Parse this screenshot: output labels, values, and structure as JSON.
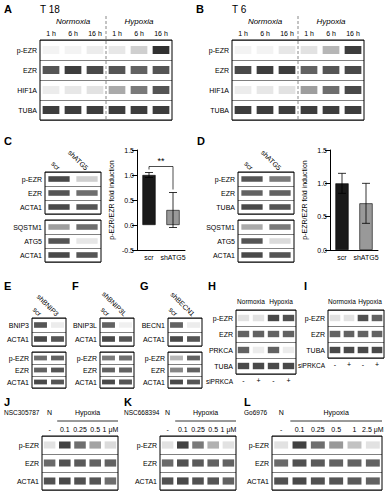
{
  "chart_data": [
    {
      "type": "heatmap",
      "label": "A",
      "title": "T 18",
      "lane_groups": [
        "Normoxia",
        "Normoxia",
        "Normoxia",
        "Hypoxia",
        "Hypoxia",
        "Hypoxia"
      ],
      "categories": [
        "1 h",
        "6 h",
        "16 h",
        "1 h",
        "6 h",
        "16 h"
      ],
      "gels": [
        {
          "rows": [
            "p-EZR",
            "EZR",
            "HIF1A",
            "TUBA"
          ],
          "values": [
            [
              0.05,
              0.05,
              0.08,
              0.1,
              0.2,
              0.85
            ],
            [
              0.7,
              0.8,
              0.75,
              0.7,
              0.65,
              0.7
            ],
            [
              0.08,
              0.1,
              0.12,
              0.35,
              0.55,
              0.7
            ],
            [
              0.8,
              0.8,
              0.8,
              0.8,
              0.8,
              0.8
            ]
          ]
        }
      ]
    },
    {
      "type": "heatmap",
      "label": "B",
      "title": "T 6",
      "lane_groups": [
        "Normoxia",
        "Normoxia",
        "Normoxia",
        "Hypoxia",
        "Hypoxia",
        "Hypoxia"
      ],
      "categories": [
        "1 h",
        "6 h",
        "16 h",
        "1 h",
        "6 h",
        "16 h"
      ],
      "gels": [
        {
          "rows": [
            "p-EZR",
            "EZR",
            "HIF1A",
            "TUBA"
          ],
          "values": [
            [
              0.05,
              0.05,
              0.1,
              0.12,
              0.3,
              0.8
            ],
            [
              0.75,
              0.8,
              0.8,
              0.65,
              0.7,
              0.75
            ],
            [
              0.08,
              0.1,
              0.12,
              0.4,
              0.6,
              0.75
            ],
            [
              0.8,
              0.8,
              0.8,
              0.8,
              0.8,
              0.8
            ]
          ]
        }
      ]
    },
    {
      "type": "heatmap",
      "label": "C",
      "categories": [
        "scr",
        "shATG5"
      ],
      "gels": [
        {
          "rows": [
            "p-EZR",
            "EZR",
            "ACTA1"
          ],
          "values": [
            [
              0.75,
              0.2
            ],
            [
              0.7,
              0.6
            ],
            [
              0.75,
              0.7
            ]
          ]
        },
        {
          "rows": [
            "SQSTM1",
            "ATG5",
            "ACTA1"
          ],
          "values": [
            [
              0.4,
              0.6
            ],
            [
              0.7,
              0.1
            ],
            [
              0.75,
              0.7
            ]
          ]
        }
      ]
    },
    {
      "type": "bar",
      "categories": [
        "scr",
        "shATG5"
      ],
      "values": [
        1.0,
        0.3
      ],
      "colors": [
        "#1a1a1a",
        "#999999"
      ],
      "error_bars": [
        0.05,
        0.35
      ],
      "ylabel": "p-EZR/EZR fold induction",
      "ylim": [
        -0.5,
        1.5
      ],
      "yticks": [
        -0.5,
        {
          "value": 0,
          "label": "0.0"
        },
        0.5,
        {
          "value": 1,
          "label": "1.0"
        },
        1.5
      ],
      "grid": false,
      "annotations": [
        "**"
      ]
    },
    {
      "type": "heatmap",
      "label": "D",
      "categories": [
        "scr",
        "shATG5"
      ],
      "gels": [
        {
          "rows": [
            "p-EZR",
            "EZR",
            "TUBA"
          ],
          "values": [
            [
              0.7,
              0.55
            ],
            [
              0.65,
              0.65
            ],
            [
              0.75,
              0.7
            ]
          ]
        },
        {
          "rows": [
            "SQSTM1",
            "ATG5",
            "ACTA1"
          ],
          "values": [
            [
              0.35,
              0.55
            ],
            [
              0.7,
              0.15
            ],
            [
              0.75,
              0.7
            ]
          ]
        }
      ]
    },
    {
      "type": "bar",
      "categories": [
        "scr",
        "shATG5"
      ],
      "values": [
        1.0,
        0.7
      ],
      "colors": [
        "#1a1a1a",
        "#999999"
      ],
      "error_bars": [
        0.15,
        0.3
      ],
      "ylabel": "p-EZR/EZR fold induction",
      "ylim": [
        0,
        1.5
      ],
      "yticks": [
        {
          "value": 0,
          "label": "0.0"
        },
        0.5,
        {
          "value": 1,
          "label": "1.0"
        },
        1.5
      ],
      "grid": false
    },
    {
      "type": "heatmap",
      "label": "E",
      "categories": [
        "scr",
        "shBNIP3"
      ],
      "gels": [
        {
          "rows": [
            "BNIP3",
            "ACTA1"
          ],
          "values": [
            [
              0.7,
              0.08
            ],
            [
              0.75,
              0.7
            ]
          ]
        },
        {
          "rows": [
            "p-EZR",
            "EZR",
            "ACTA1"
          ],
          "values": [
            [
              0.6,
              0.65
            ],
            [
              0.65,
              0.7
            ],
            [
              0.75,
              0.7
            ]
          ]
        }
      ]
    },
    {
      "type": "heatmap",
      "label": "F",
      "categories": [
        "scr",
        "shBNIP3L"
      ],
      "gels": [
        {
          "rows": [
            "BNIP3L",
            "ACTA1"
          ],
          "values": [
            [
              0.65,
              0.06
            ],
            [
              0.75,
              0.7
            ]
          ]
        },
        {
          "rows": [
            "p-EZR",
            "EZR",
            "ACTA1"
          ],
          "values": [
            [
              0.55,
              0.6
            ],
            [
              0.65,
              0.65
            ],
            [
              0.75,
              0.7
            ]
          ]
        }
      ]
    },
    {
      "type": "heatmap",
      "label": "G",
      "categories": [
        "scr",
        "shBECN1"
      ],
      "gels": [
        {
          "rows": [
            "BECN1",
            "ACTA1"
          ],
          "values": [
            [
              0.65,
              0.08
            ],
            [
              0.75,
              0.7
            ]
          ]
        },
        {
          "rows": [
            "p-EZR",
            "EZR",
            "ACTA1"
          ],
          "values": [
            [
              0.3,
              0.65
            ],
            [
              0.5,
              0.65
            ],
            [
              0.75,
              0.7
            ]
          ]
        }
      ]
    },
    {
      "type": "heatmap",
      "label": "H",
      "lane_groups": [
        "Normoxia",
        "Normoxia",
        "Hypoxia",
        "Hypoxia"
      ],
      "categories": [
        "-",
        "+",
        "-",
        "+"
      ],
      "xlabel": "siPRKCA",
      "gels": [
        {
          "rows": [
            "p-EZR",
            "EZR",
            "PRKCA",
            "TUBA"
          ],
          "values": [
            [
              0.12,
              0.12,
              0.75,
              0.72
            ],
            [
              0.65,
              0.65,
              0.65,
              0.65
            ],
            [
              0.65,
              0.08,
              0.65,
              0.08
            ],
            [
              0.75,
              0.75,
              0.75,
              0.75
            ]
          ]
        }
      ]
    },
    {
      "type": "heatmap",
      "label": "I",
      "lane_groups": [
        "Normoxia",
        "Normoxia",
        "Hypoxia",
        "Hypoxia"
      ],
      "categories": [
        "-",
        "+",
        "-",
        "+"
      ],
      "xlabel": "siPRKCA",
      "gels": [
        {
          "rows": [
            "p-EZR",
            "EZR",
            "TUBA"
          ],
          "values": [
            [
              0.12,
              0.12,
              0.72,
              0.65
            ],
            [
              0.65,
              0.65,
              0.65,
              0.65
            ],
            [
              0.75,
              0.75,
              0.75,
              0.75
            ]
          ]
        }
      ]
    },
    {
      "type": "heatmap",
      "label": "J",
      "subtitle": "NSC305787",
      "lane_groups": [
        "N",
        "Hypoxia",
        "Hypoxia",
        "Hypoxia",
        "Hypoxia"
      ],
      "categories": [
        "-",
        "0.1",
        "0.25",
        "0.5",
        "1 μM"
      ],
      "gels": [
        {
          "rows": [
            "p-EZR",
            "EZR",
            "ACTA1"
          ],
          "values": [
            [
              0.12,
              0.78,
              0.6,
              0.38,
              0.15
            ],
            [
              0.62,
              0.72,
              0.68,
              0.65,
              0.65
            ],
            [
              0.72,
              0.75,
              0.72,
              0.7,
              0.6
            ]
          ]
        }
      ]
    },
    {
      "type": "heatmap",
      "label": "K",
      "subtitle": "NSC668394",
      "lane_groups": [
        "N",
        "Hypoxia",
        "Hypoxia",
        "Hypoxia",
        "Hypoxia"
      ],
      "categories": [
        "-",
        "0.1",
        "0.25",
        "0.5",
        "1 μM"
      ],
      "gels": [
        {
          "rows": [
            "p-EZR",
            "EZR",
            "ACTA1"
          ],
          "values": [
            [
              0.12,
              0.78,
              0.55,
              0.32,
              0.12
            ],
            [
              0.62,
              0.72,
              0.68,
              0.65,
              0.65
            ],
            [
              0.72,
              0.75,
              0.72,
              0.7,
              0.65
            ]
          ]
        }
      ]
    },
    {
      "type": "heatmap",
      "label": "L",
      "subtitle": "Go6976",
      "lane_groups": [
        "N",
        "Hypoxia",
        "Hypoxia",
        "Hypoxia",
        "Hypoxia",
        "Hypoxia"
      ],
      "categories": [
        "-",
        "0.1",
        "0.25",
        "0.5",
        "1",
        "2.5 μM"
      ],
      "gels": [
        {
          "rows": [
            "p-EZR",
            "EZR",
            "ACTA1"
          ],
          "values": [
            [
              0.12,
              0.78,
              0.6,
              0.42,
              0.25,
              0.12
            ],
            [
              0.62,
              0.72,
              0.68,
              0.65,
              0.65,
              0.65
            ],
            [
              0.72,
              0.75,
              0.72,
              0.7,
              0.68,
              0.65
            ]
          ]
        }
      ]
    }
  ]
}
